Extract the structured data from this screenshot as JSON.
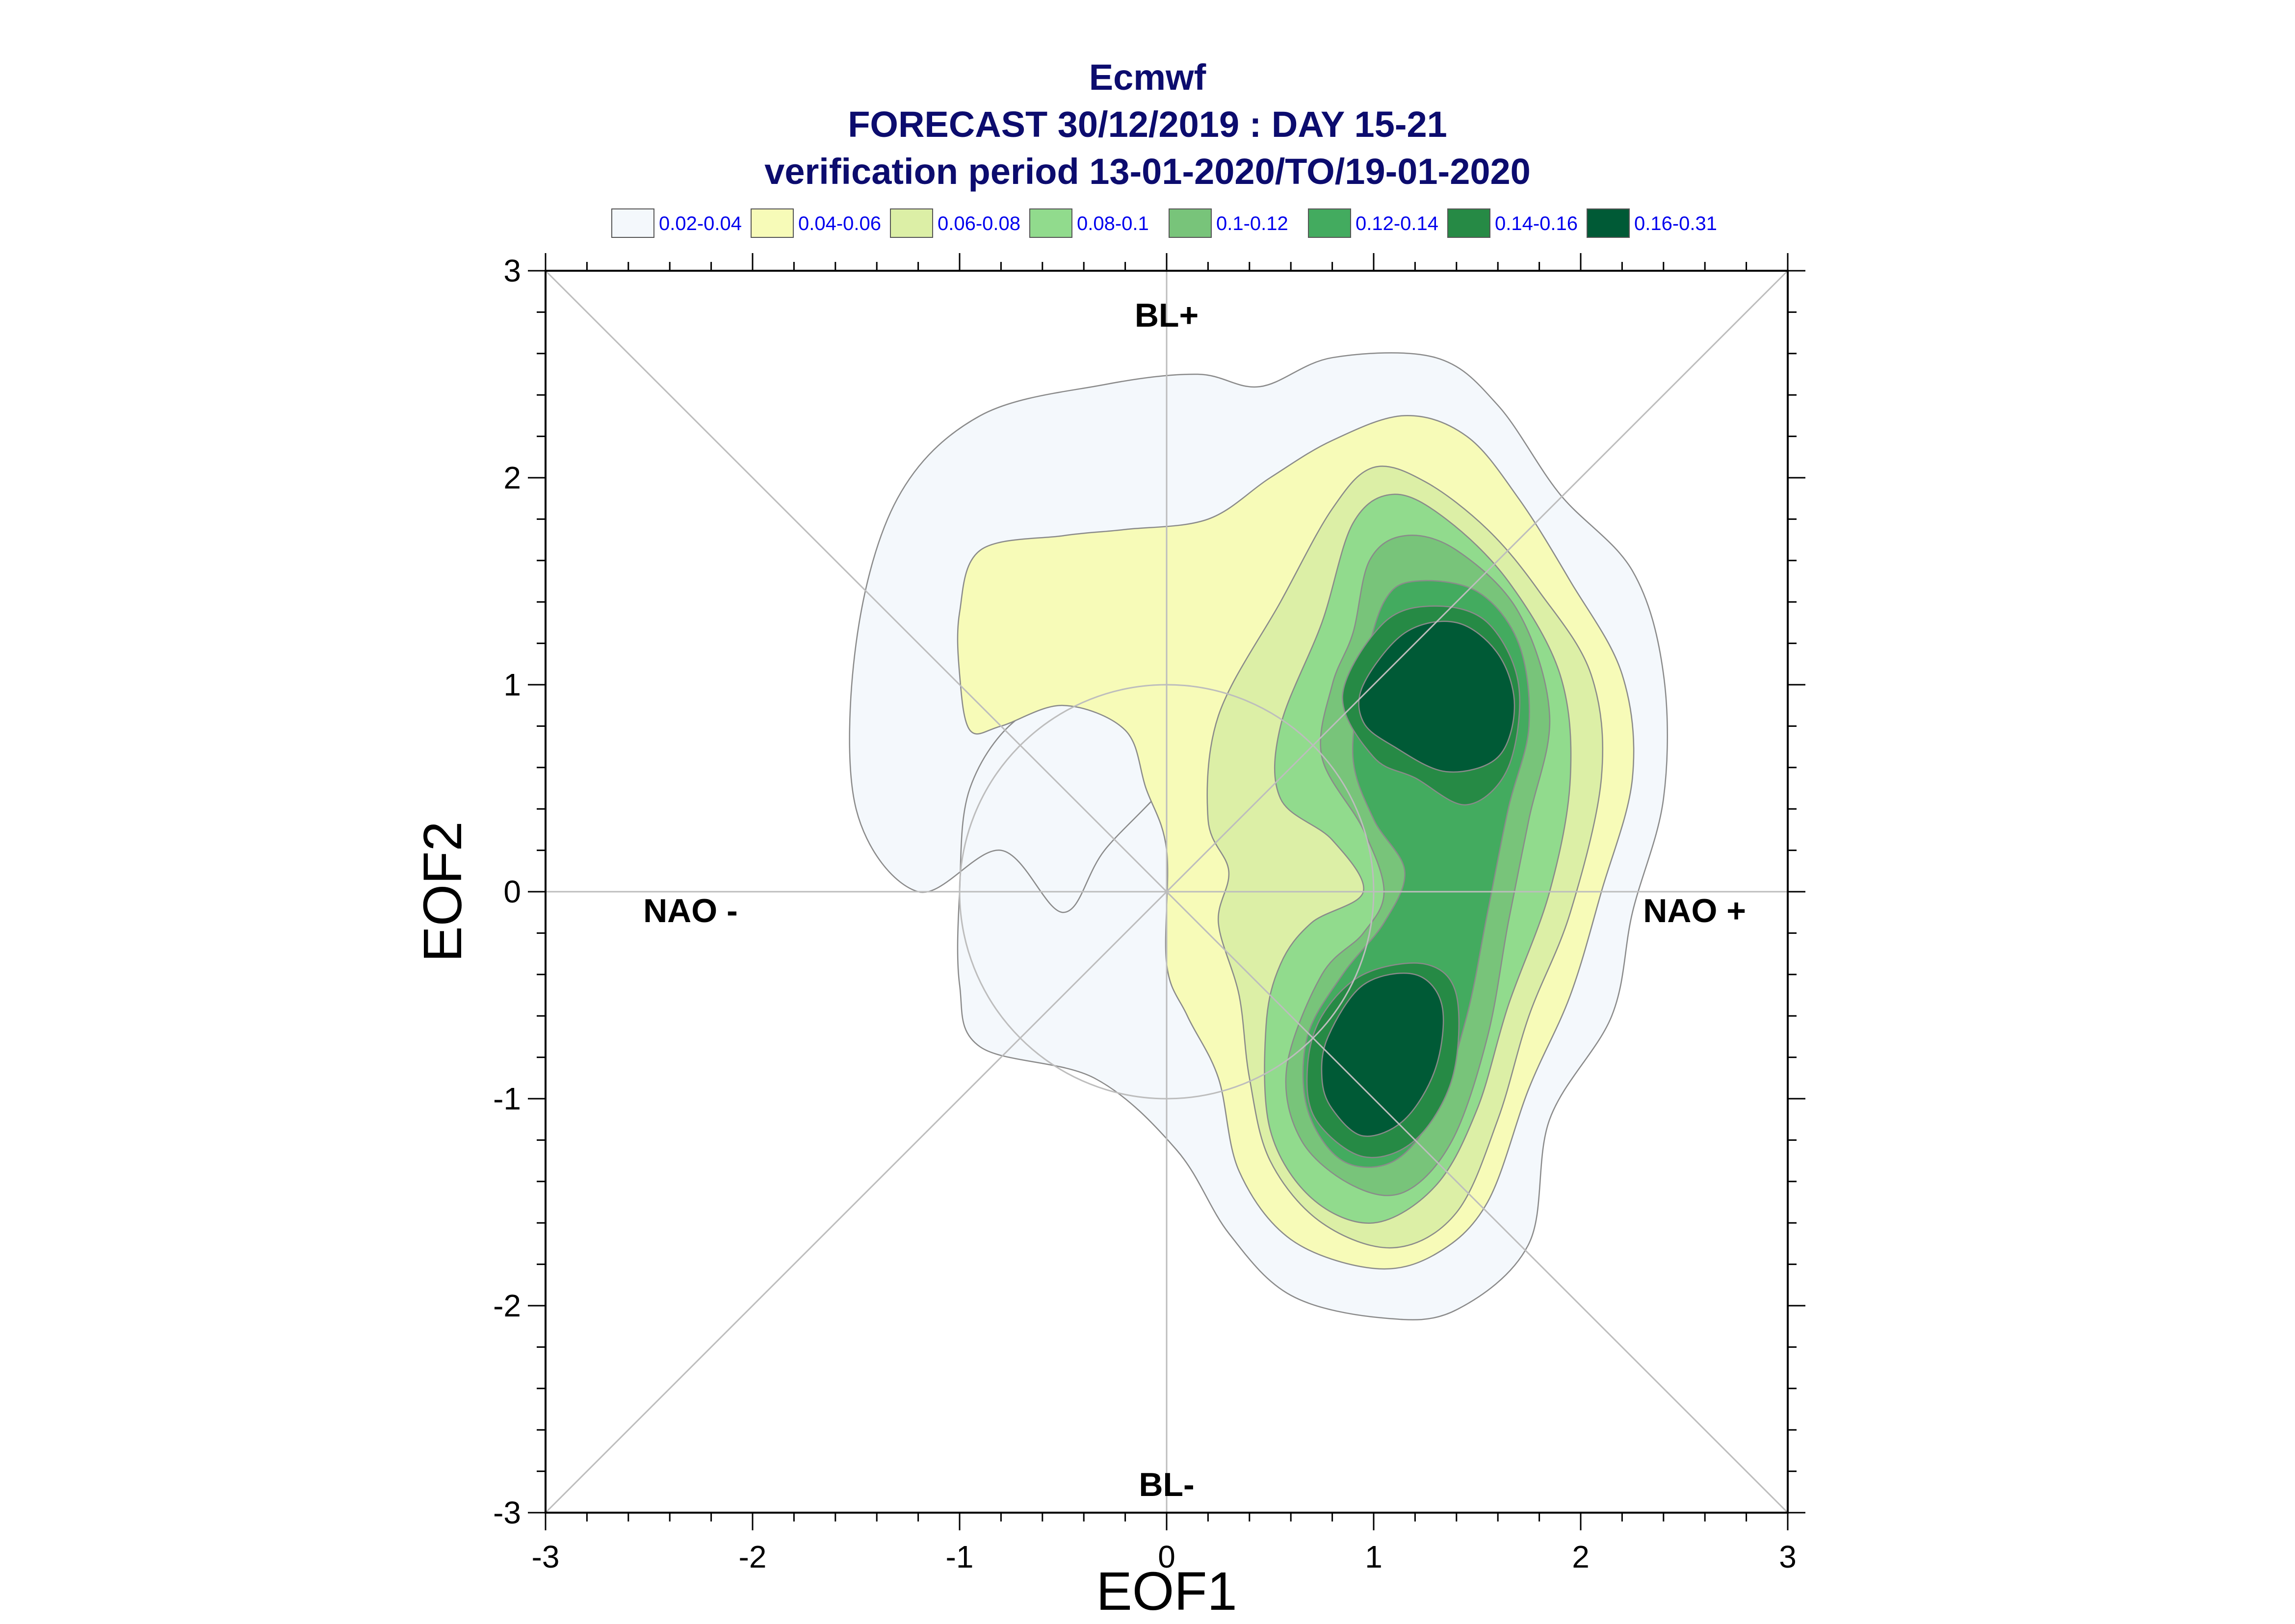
{
  "title": {
    "line1": "Ecmwf",
    "line2": "FORECAST 30/12/2019 : DAY 15-21",
    "line3": "verification period 13-01-2020/TO/19-01-2020"
  },
  "chart_data": {
    "type": "contour",
    "xlabel": "EOF1",
    "ylabel": "EOF2",
    "xlim": [
      -3,
      3
    ],
    "ylim": [
      -3,
      3
    ],
    "xticks": [
      "-3",
      "-2",
      "-1",
      "0",
      "1",
      "2",
      "3"
    ],
    "yticks": [
      "-3",
      "-2",
      "-1",
      "0",
      "1",
      "2",
      "3"
    ],
    "legend": {
      "position": "top",
      "levels": [
        {
          "label": "0.02-0.04",
          "color": "#f4f8fc"
        },
        {
          "label": "0.04-0.06",
          "color": "#f7fbb8"
        },
        {
          "label": "0.06-0.08",
          "color": "#dcefa6"
        },
        {
          "label": "0.08-0.1",
          "color": "#91db8d"
        },
        {
          "label": "0.1-0.12",
          "color": "#78c47a"
        },
        {
          "label": "0.12-0.14",
          "color": "#43ab5f"
        },
        {
          "label": "0.14-0.16",
          "color": "#268a45"
        },
        {
          "label": "0.16-0.31",
          "color": "#005a36"
        }
      ]
    },
    "regime_labels": {
      "top": "BL+",
      "bottom": "BL-",
      "left": "NAO -",
      "right": "NAO +"
    },
    "density_peaks": [
      {
        "x": 1.35,
        "y": 0.9,
        "level": "0.16-0.31"
      },
      {
        "x": 1.1,
        "y": -0.85,
        "level": "0.16-0.31"
      }
    ],
    "grid": "crosshair and diagonals through origin, unit circle"
  }
}
